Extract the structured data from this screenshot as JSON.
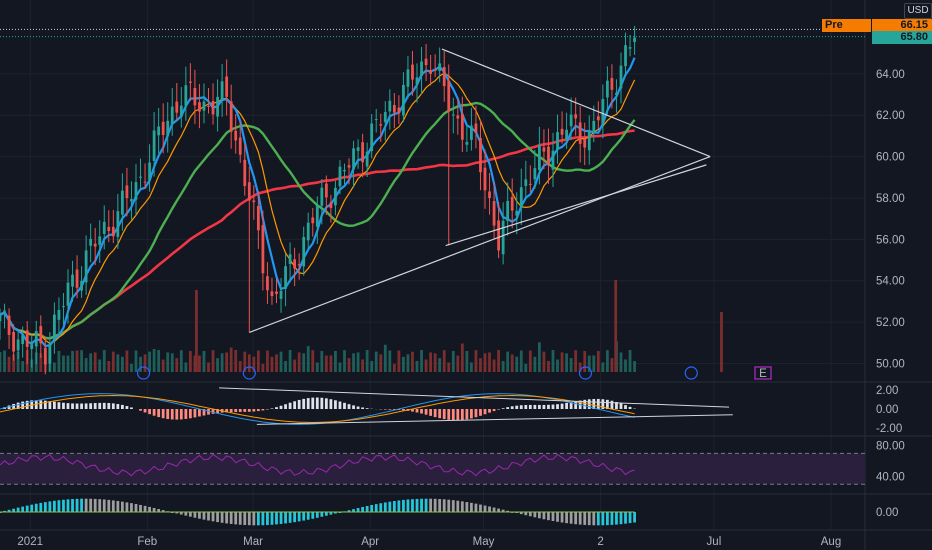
{
  "currency": "USD",
  "price_tags": {
    "pre_label": "Pre",
    "pre_value": "66.15",
    "last_value": "65.80",
    "pre_color": "#f57c00",
    "last_color": "#26a69a"
  },
  "event_markers": {
    "earnings": "E"
  },
  "chart_data": [
    {
      "type": "candlestick",
      "panel": "price",
      "y_ticks": [
        "64.00",
        "62.00",
        "60.00",
        "58.00",
        "56.00",
        "54.00",
        "52.00",
        "50.00"
      ],
      "ylim": [
        49.2,
        66.7
      ],
      "x_ticks": [
        "2021",
        "Feb",
        "Mar",
        "Apr",
        "May",
        "2",
        "Jul",
        "Aug"
      ],
      "x_tick_days": [
        0,
        31,
        59,
        90,
        120,
        151,
        181,
        212
      ],
      "xlim": [
        -8,
        221
      ],
      "colors": {
        "up": "#26a69a",
        "down": "#ef5350",
        "ma_fast": "#2196f3",
        "ma_mid": "#ff9800",
        "ma_slow": "#4caf50",
        "ma_long": "#f23645",
        "trendline": "#d1d4dc"
      },
      "candles_weekly_closes": [
        52.0,
        51.0,
        50.8,
        53.5,
        55.5,
        57.0,
        58.5,
        61.0,
        63.0,
        62.5,
        62.8,
        58.0,
        53.0,
        55.0,
        57.5,
        59.0,
        60.5,
        62.0,
        63.5,
        64.8,
        62.0,
        60.5,
        56.0,
        58.5,
        60.0,
        61.5,
        61.0,
        63.5,
        65.8
      ],
      "trendlines": [
        {
          "from": [
            58,
            51.5
          ],
          "to": [
            180,
            60.0
          ]
        },
        {
          "from": [
            109,
            65.2
          ],
          "to": [
            180,
            60.0
          ]
        },
        {
          "from": [
            110,
            55.7
          ],
          "to": [
            179,
            59.6
          ]
        }
      ]
    },
    {
      "type": "area",
      "panel": "volume",
      "note_markers": [
        "dividend",
        "dividend",
        "dividend",
        "dividend",
        "E"
      ]
    },
    {
      "type": "histogram",
      "panel": "macd",
      "y_ticks": [
        "2.00",
        "0.00",
        "-2.00"
      ],
      "ylim": [
        -2.6,
        2.6
      ]
    },
    {
      "type": "line",
      "panel": "rsi",
      "y_ticks": [
        "80.00",
        "40.00"
      ],
      "ylim": [
        20,
        90
      ],
      "bands": [
        30,
        70
      ]
    },
    {
      "type": "histogram",
      "panel": "oscillator",
      "y_ticks": [
        "0.00"
      ],
      "ylim": [
        -1.2,
        1.2
      ]
    }
  ]
}
